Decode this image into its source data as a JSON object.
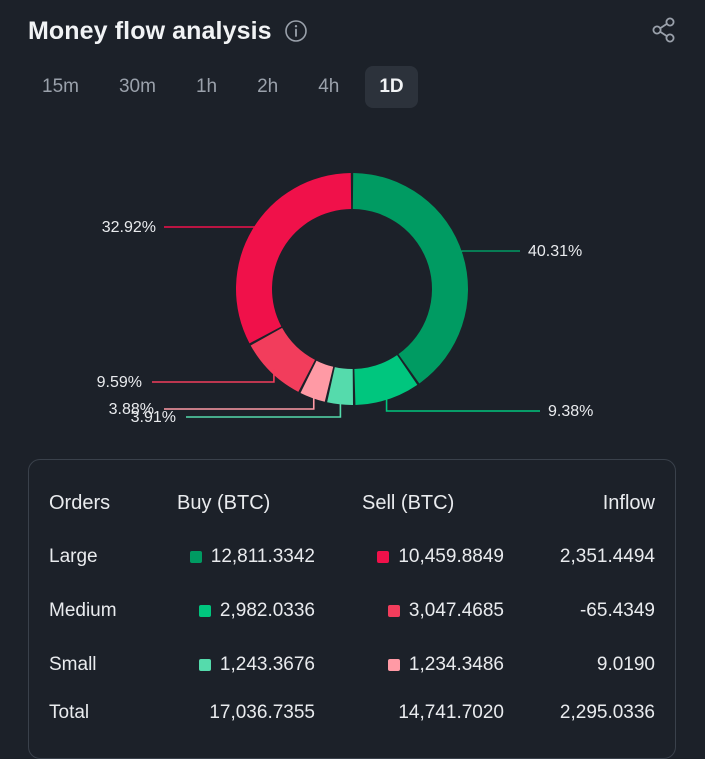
{
  "header": {
    "title": "Money flow analysis"
  },
  "tabs": [
    {
      "label": "15m",
      "active": false
    },
    {
      "label": "30m",
      "active": false
    },
    {
      "label": "1h",
      "active": false
    },
    {
      "label": "2h",
      "active": false
    },
    {
      "label": "4h",
      "active": false
    },
    {
      "label": "1D",
      "active": true
    }
  ],
  "chart_data": {
    "type": "pie",
    "subtype": "donut",
    "title": "Money flow analysis",
    "slices": [
      {
        "name": "Buy Large",
        "value": 40.31,
        "label": "40.31%",
        "color": "#009b62",
        "legend_side": "right"
      },
      {
        "name": "Buy Medium",
        "value": 9.38,
        "label": "9.38%",
        "color": "#00c67e",
        "legend_side": "right"
      },
      {
        "name": "Buy Small",
        "value": 3.91,
        "label": "3.91%",
        "color": "#55dbac",
        "legend_side": "left"
      },
      {
        "name": "Sell Small",
        "value": 3.88,
        "label": "3.88%",
        "color": "#ff9aa5",
        "legend_side": "left"
      },
      {
        "name": "Sell Medium",
        "value": 9.59,
        "label": "9.59%",
        "color": "#f23d5c",
        "legend_side": "left"
      },
      {
        "name": "Sell Large",
        "value": 32.92,
        "label": "32.92%",
        "color": "#f0114a",
        "legend_side": "left"
      }
    ]
  },
  "table": {
    "headers": {
      "orders": "Orders",
      "buy": "Buy (BTC)",
      "sell": "Sell (BTC)",
      "inflow": "Inflow"
    },
    "rows": [
      {
        "label": "Large",
        "buy": "12,811.3342",
        "sell": "10,459.8849",
        "inflow": "2,351.4494",
        "buy_color": "#009b62",
        "sell_color": "#f0114a"
      },
      {
        "label": "Medium",
        "buy": "2,982.0336",
        "sell": "3,047.4685",
        "inflow": "-65.4349",
        "buy_color": "#00c67e",
        "sell_color": "#f23d5c"
      },
      {
        "label": "Small",
        "buy": "1,243.3676",
        "sell": "1,234.3486",
        "inflow": "9.0190",
        "buy_color": "#55dbac",
        "sell_color": "#ff9aa5"
      }
    ],
    "total": {
      "label": "Total",
      "buy": "17,036.7355",
      "sell": "14,741.7020",
      "inflow": "2,295.0336"
    }
  }
}
